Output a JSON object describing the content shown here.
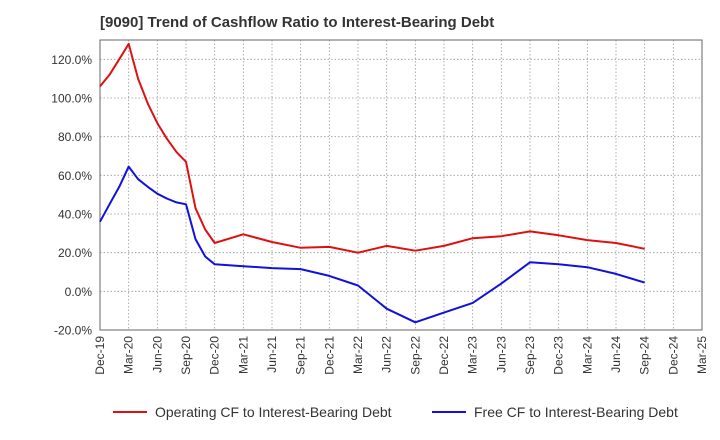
{
  "chart_data": {
    "type": "line",
    "title": "[9090]  Trend of Cashflow Ratio to Interest-Bearing Debt",
    "xlabel": "",
    "ylabel": "",
    "ylim": [
      -20,
      130
    ],
    "yticks": [
      -20,
      0,
      20,
      40,
      60,
      80,
      100,
      120
    ],
    "ytick_labels": [
      "-20.0%",
      "0.0%",
      "20.0%",
      "40.0%",
      "60.0%",
      "80.0%",
      "100.0%",
      "120.0%"
    ],
    "x_ticks": [
      "Dec-19",
      "Mar-20",
      "Jun-20",
      "Sep-20",
      "Dec-20",
      "Mar-21",
      "Jun-21",
      "Sep-21",
      "Dec-21",
      "Mar-22",
      "Jun-22",
      "Sep-22",
      "Dec-22",
      "Mar-23",
      "Jun-23",
      "Sep-23",
      "Dec-23",
      "Mar-24",
      "Jun-24",
      "Sep-24",
      "Dec-24",
      "Mar-25"
    ],
    "grid": true,
    "legend_position": "bottom",
    "series": [
      {
        "name": "Operating CF to Interest-Bearing Debt",
        "color": "#dd1111",
        "points": [
          [
            0,
            106
          ],
          [
            0.33,
            112
          ],
          [
            0.67,
            120
          ],
          [
            1,
            128
          ],
          [
            1.33,
            110
          ],
          [
            1.67,
            97
          ],
          [
            2,
            87
          ],
          [
            2.33,
            79
          ],
          [
            2.67,
            72
          ],
          [
            3,
            67
          ],
          [
            3.33,
            43
          ],
          [
            3.67,
            32
          ],
          [
            4,
            25
          ],
          [
            5,
            29.5
          ],
          [
            6,
            25.5
          ],
          [
            7,
            22.5
          ],
          [
            8,
            23
          ],
          [
            9,
            20
          ],
          [
            10,
            23.5
          ],
          [
            11,
            21
          ],
          [
            12,
            23.5
          ],
          [
            13,
            27.5
          ],
          [
            14,
            28.5
          ],
          [
            15,
            31
          ],
          [
            16,
            29
          ],
          [
            17,
            26.5
          ],
          [
            18,
            25
          ],
          [
            19,
            22
          ]
        ]
      },
      {
        "name": "Free CF to Interest-Bearing Debt",
        "color": "#1111dd",
        "points": [
          [
            0,
            36
          ],
          [
            0.33,
            45
          ],
          [
            0.67,
            54
          ],
          [
            1,
            64.5
          ],
          [
            1.33,
            58
          ],
          [
            1.67,
            54
          ],
          [
            2,
            50.5
          ],
          [
            2.33,
            48
          ],
          [
            2.67,
            46
          ],
          [
            3,
            45
          ],
          [
            3.33,
            27
          ],
          [
            3.67,
            18
          ],
          [
            4,
            14
          ],
          [
            5,
            13
          ],
          [
            6,
            12
          ],
          [
            7,
            11.5
          ],
          [
            8,
            8
          ],
          [
            9,
            3
          ],
          [
            10,
            -9
          ],
          [
            11,
            -16
          ],
          [
            12,
            -11
          ],
          [
            13,
            -6
          ],
          [
            14,
            4
          ],
          [
            15,
            15
          ],
          [
            16,
            14
          ],
          [
            17,
            12.5
          ],
          [
            18,
            9
          ],
          [
            19,
            4.5
          ]
        ]
      }
    ]
  }
}
